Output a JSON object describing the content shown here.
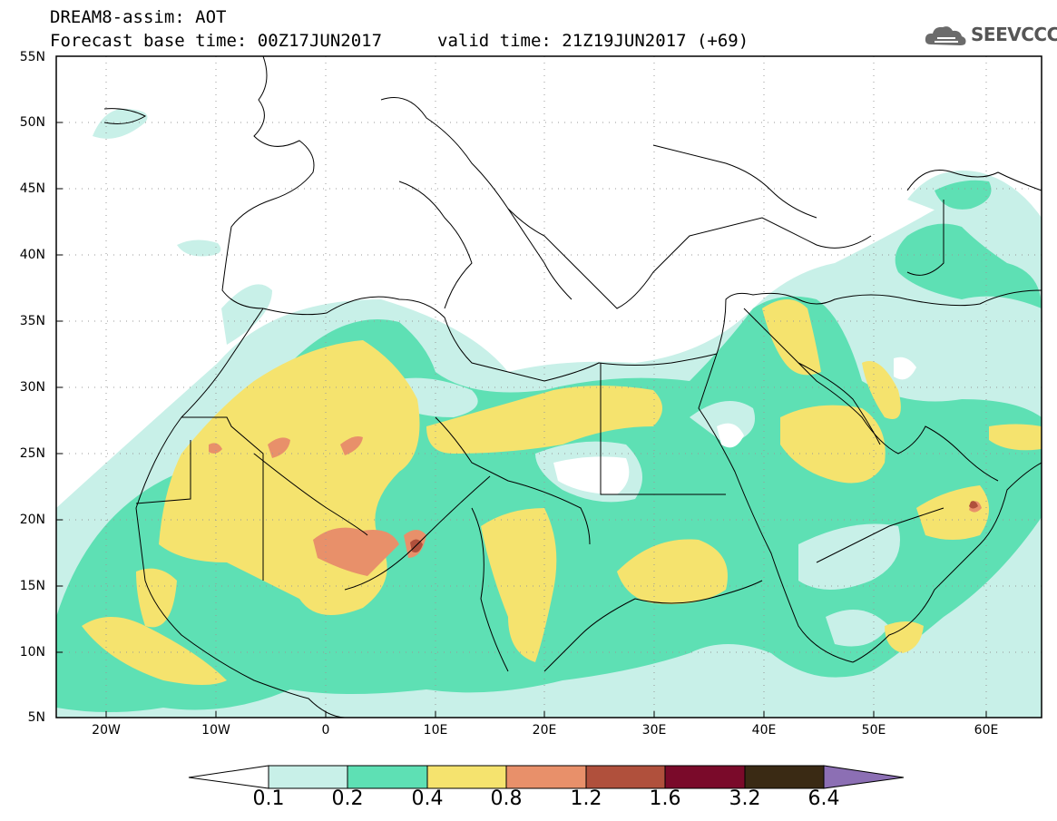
{
  "header": {
    "title": "DREAM8-assim: AOT",
    "base_time": "Forecast base time: 00Z17JUN2017",
    "valid_time": "valid time: 21Z19JUN2017 (+69)",
    "logo_text": "SEEVCCC"
  },
  "map": {
    "lat_labels": [
      "55N",
      "50N",
      "45N",
      "40N",
      "35N",
      "30N",
      "25N",
      "20N",
      "15N",
      "10N",
      "5N"
    ],
    "lon_labels": [
      "20W",
      "10W",
      "0",
      "10E",
      "20E",
      "30E",
      "40E",
      "50E",
      "60E"
    ],
    "extent": {
      "lon": [
        -25,
        65
      ],
      "lat": [
        5,
        55
      ]
    }
  },
  "colorbar": {
    "levels": [
      "0.1",
      "0.2",
      "0.4",
      "0.8",
      "1.2",
      "1.6",
      "3.2",
      "6.4"
    ],
    "colors": [
      "#ffffff",
      "#c8f0e8",
      "#5ee0b4",
      "#f5e36e",
      "#e8906a",
      "#b0503c",
      "#7a0a2a",
      "#3a2a14",
      "#8c6fb4"
    ]
  }
}
